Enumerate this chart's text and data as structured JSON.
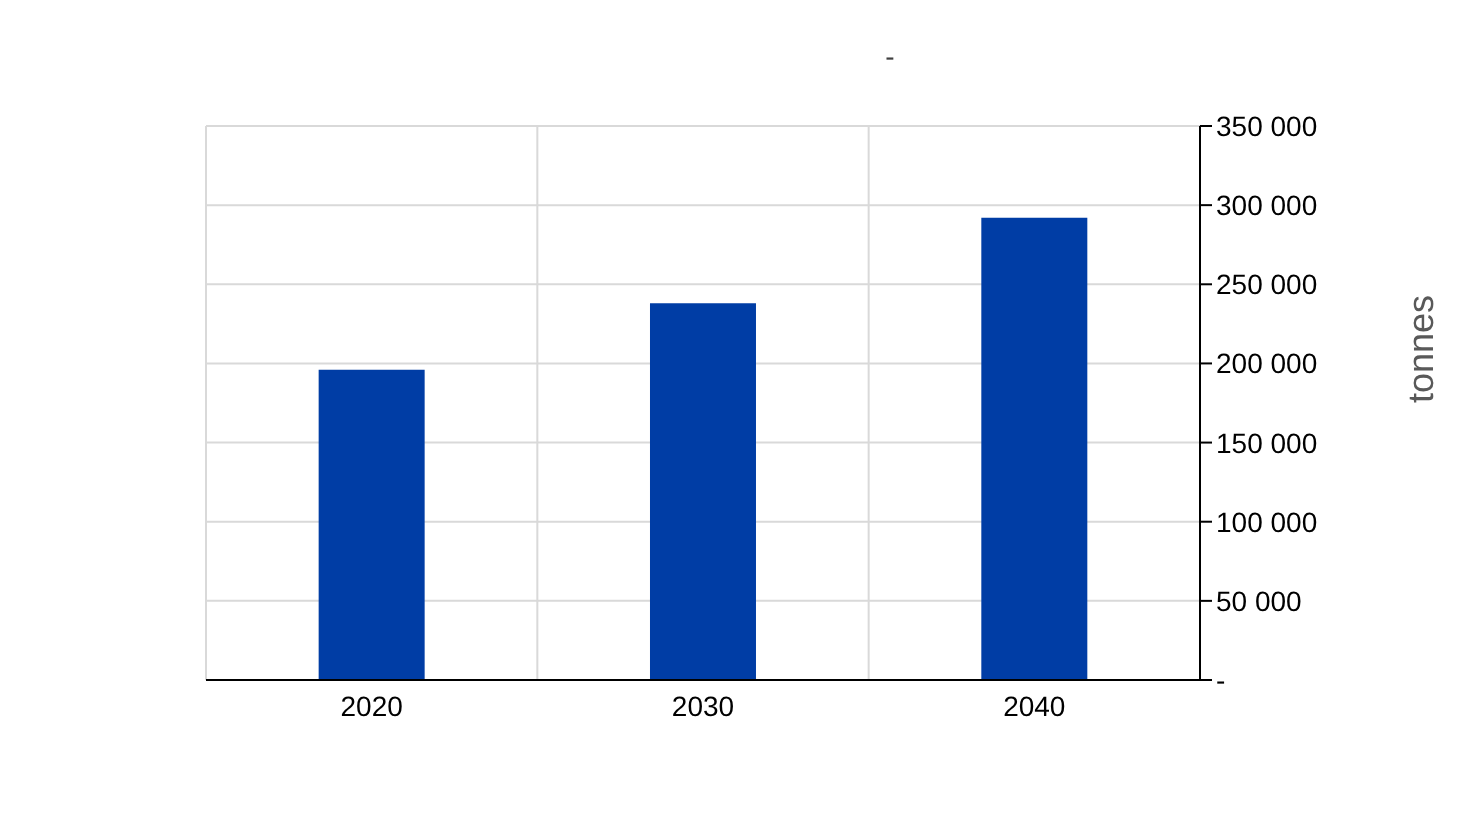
{
  "chart_data": {
    "type": "bar",
    "title": "-",
    "ylabel": "tonnes",
    "categories": [
      "2020",
      "2030",
      "2040"
    ],
    "values": [
      196000,
      238000,
      292000
    ],
    "color": "#003da5",
    "ylim": [
      0,
      350000
    ],
    "yticks": [
      {
        "value": 0,
        "label": "-"
      },
      {
        "value": 50000,
        "label": "50 000"
      },
      {
        "value": 100000,
        "label": "100 000"
      },
      {
        "value": 150000,
        "label": "150 000"
      },
      {
        "value": 200000,
        "label": "200 000"
      },
      {
        "value": 250000,
        "label": "250 000"
      },
      {
        "value": 300000,
        "label": "300 000"
      },
      {
        "value": 350000,
        "label": "350 000"
      }
    ],
    "grid": true
  }
}
